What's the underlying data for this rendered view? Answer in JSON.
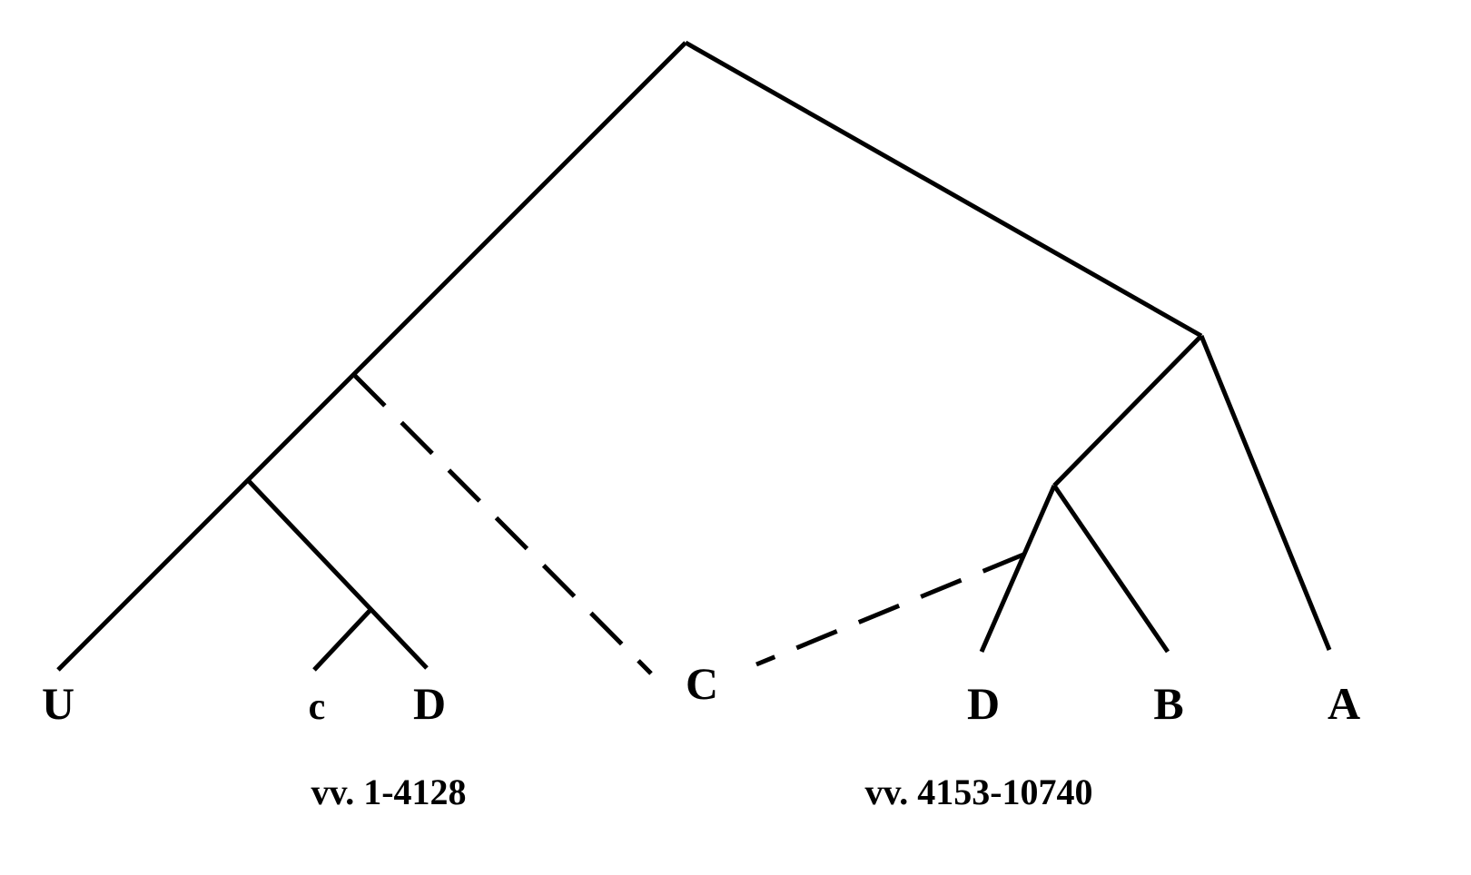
{
  "stemma": {
    "witnesses": {
      "U": "U",
      "c": "c",
      "D_left": "D",
      "C": "C",
      "D_right": "D",
      "B": "B",
      "A": "A"
    },
    "sections": {
      "left": "vv. 1-4128",
      "right": "vv. 4153-10740"
    },
    "colors": {
      "line": "#000000",
      "background": "#ffffff"
    }
  }
}
